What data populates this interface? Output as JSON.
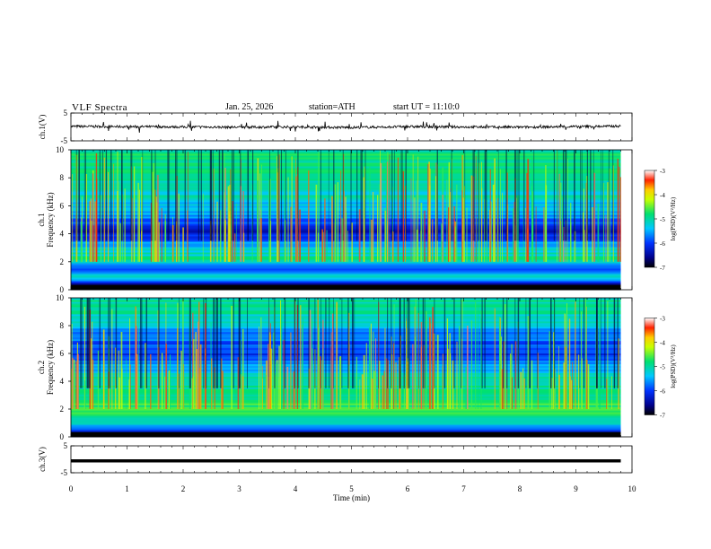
{
  "header": {
    "title": "VLF Spectra",
    "date": "Jan. 25, 2026",
    "station": "station=ATH",
    "start": "start UT =  11:10:0"
  },
  "chart_data": [
    {
      "type": "line",
      "ylabel": "ch.1(V)",
      "ylim": [
        -5,
        5
      ],
      "y_ticks": [
        "5",
        "-5"
      ],
      "x_range": [
        0,
        10
      ],
      "series": [
        {
          "x": [
            0,
            1,
            2,
            3,
            4,
            5,
            6,
            7,
            8,
            9,
            9.8
          ],
          "values": [
            0.2,
            0.1,
            0.0,
            -0.1,
            0.0,
            -0.2,
            0.1,
            0.0,
            -0.1,
            0.1,
            0.3
          ]
        }
      ]
    },
    {
      "type": "heatmap",
      "ylabel": "ch.1",
      "ylabel2": "Frequency (kHz)",
      "ylim": [
        0,
        10
      ],
      "y_ticks": [
        "0",
        "2",
        "4",
        "6",
        "8",
        "10"
      ],
      "x_range": [
        0,
        9.8
      ],
      "colorbar": {
        "label": "log(PSD)(V²/Hz)",
        "range": [
          -7,
          -3
        ],
        "ticks": [
          "-3",
          "-4",
          "-5",
          "-6",
          "-7"
        ]
      },
      "band_profile_khz": [
        {
          "f": 0.2,
          "level": -6.8
        },
        {
          "f": 1.0,
          "level": -5.2
        },
        {
          "f": 1.5,
          "level": -5.8
        },
        {
          "f": 2.2,
          "level": -5.0
        },
        {
          "f": 3.0,
          "level": -5.3
        },
        {
          "f": 4.2,
          "level": -6.3
        },
        {
          "f": 5.5,
          "level": -5.5
        },
        {
          "f": 7.0,
          "level": -5.1
        },
        {
          "f": 9.0,
          "level": -4.9
        }
      ]
    },
    {
      "type": "heatmap",
      "ylabel": "ch.2",
      "ylabel2": "Frequency (kHz)",
      "ylim": [
        0,
        10
      ],
      "y_ticks": [
        "0",
        "2",
        "4",
        "6",
        "8",
        "10"
      ],
      "x_range": [
        0,
        9.8
      ],
      "colorbar": {
        "label": "log(PSD)(V²/Hz)",
        "range": [
          -7,
          -3
        ],
        "ticks": [
          "-3",
          "-4",
          "-5",
          "-6",
          "-7"
        ]
      },
      "band_profile_khz": [
        {
          "f": 0.2,
          "level": -6.6
        },
        {
          "f": 1.0,
          "level": -5.0
        },
        {
          "f": 2.0,
          "level": -4.6
        },
        {
          "f": 3.0,
          "level": -4.9
        },
        {
          "f": 4.5,
          "level": -5.2
        },
        {
          "f": 6.0,
          "level": -6.1
        },
        {
          "f": 7.5,
          "level": -5.6
        },
        {
          "f": 9.0,
          "level": -5.0
        }
      ]
    },
    {
      "type": "line",
      "ylabel": "ch.3(V)",
      "ylim": [
        -5,
        5
      ],
      "y_ticks": [
        "5",
        "-5"
      ],
      "x_range": [
        0,
        10
      ],
      "series": [
        {
          "x": [
            0,
            9.8
          ],
          "values": [
            -0.6,
            -0.6
          ]
        }
      ]
    }
  ],
  "x_axis": {
    "label": "Time (min)",
    "ticks": [
      "0",
      "1",
      "2",
      "3",
      "4",
      "5",
      "6",
      "7",
      "8",
      "9",
      "10"
    ]
  }
}
